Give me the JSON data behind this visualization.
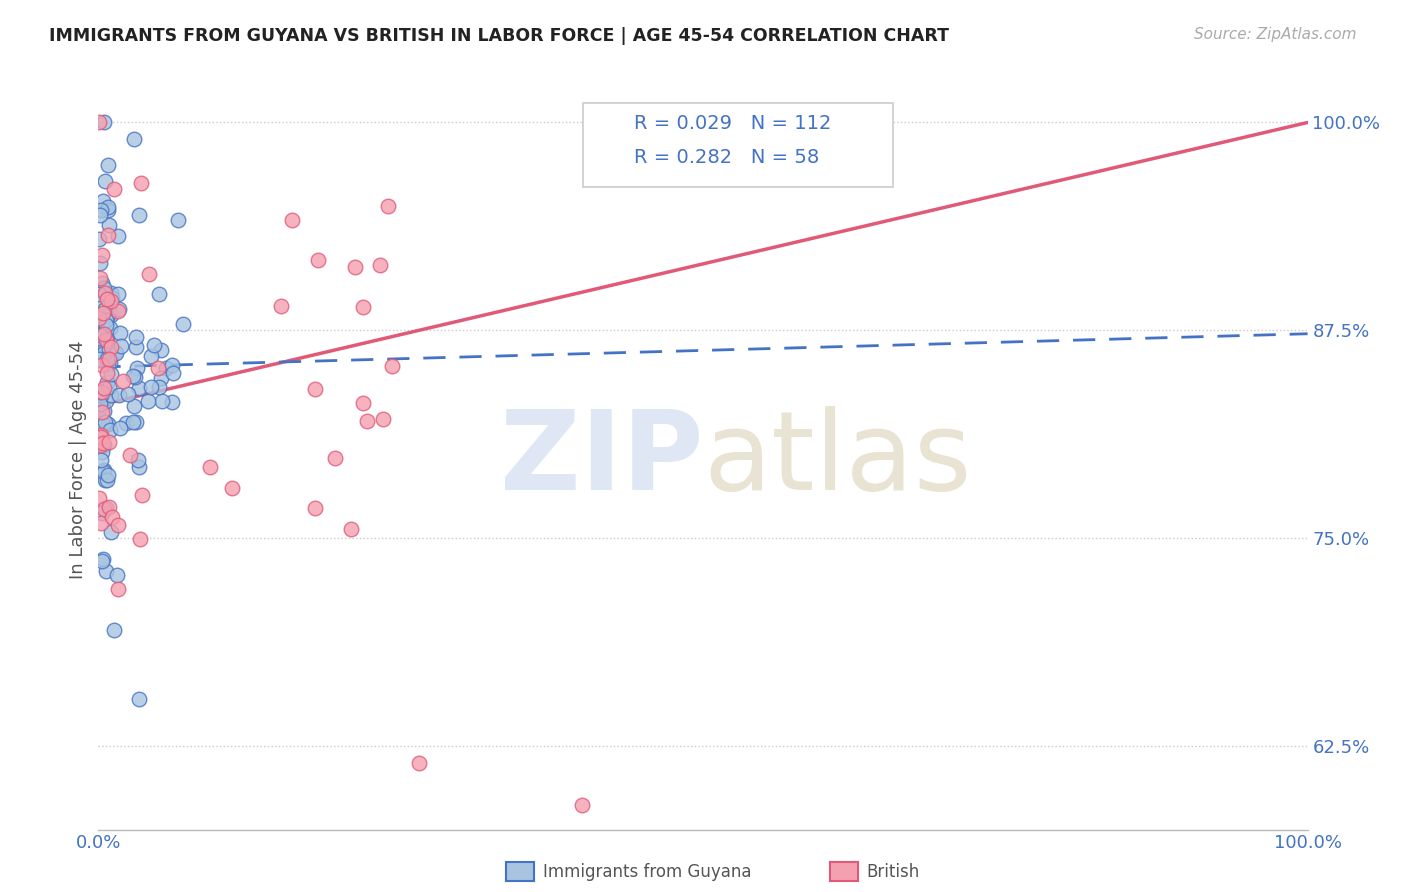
{
  "title": "IMMIGRANTS FROM GUYANA VS BRITISH IN LABOR FORCE | AGE 45-54 CORRELATION CHART",
  "source": "Source: ZipAtlas.com",
  "ylabel": "In Labor Force | Age 45-54",
  "legend_blue_r": "0.029",
  "legend_blue_n": "112",
  "legend_pink_r": "0.282",
  "legend_pink_n": "58",
  "legend_blue_label": "Immigrants from Guyana",
  "legend_pink_label": "British",
  "blue_color": "#a8c4e0",
  "pink_color": "#f4a0b0",
  "blue_line_color": "#4472c4",
  "pink_line_color": "#e05a78",
  "blue_edge_color": "#4472c4",
  "pink_edge_color": "#e05a78",
  "xlim": [
    0.0,
    1.0
  ],
  "ylim": [
    0.575,
    1.02
  ],
  "yticks": [
    0.625,
    0.75,
    0.875,
    1.0
  ],
  "ytick_labels": [
    "62.5%",
    "75.0%",
    "87.5%",
    "100.0%"
  ],
  "blue_line_intercept": 0.853,
  "blue_line_slope": 0.02,
  "pink_line_intercept": 0.83,
  "pink_line_slope": 0.17,
  "seed": 123
}
